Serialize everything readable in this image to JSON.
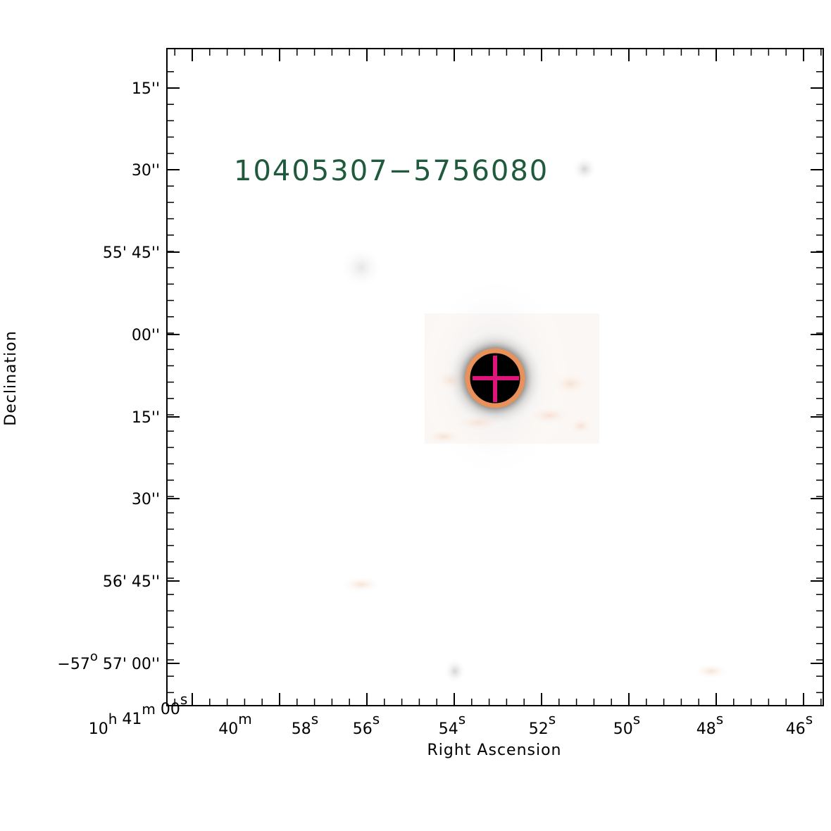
{
  "chart_data": {
    "type": "sky-image",
    "target_label": "10405307−5756080",
    "xlabel": "Right Ascension",
    "ylabel": "Declination",
    "colors": {
      "label": "#1f5a3c",
      "circle": "#e8915a",
      "cross": "#e0157c",
      "axis": "#000000"
    },
    "ra_ticks": [
      {
        "main": "10",
        "sup": "h",
        "main2": " 41",
        "sup2": "m",
        "main3": " 00",
        "sup3": "s"
      },
      {
        "main": "40",
        "sup": "m",
        "main2": "",
        "sup2": "",
        "main3": "",
        "sup3": ""
      },
      {
        "main": "58",
        "sup": "s"
      },
      {
        "main": "56",
        "sup": "s"
      },
      {
        "main": "54",
        "sup": "s"
      },
      {
        "main": "52",
        "sup": "s"
      },
      {
        "main": "50",
        "sup": "s"
      },
      {
        "main": "48",
        "sup": "s"
      },
      {
        "main": "46",
        "sup": "s"
      }
    ],
    "dec_ticks": [
      {
        "text": "15''"
      },
      {
        "text": "30''"
      },
      {
        "text": "55' 45''"
      },
      {
        "text": "00''"
      },
      {
        "text": "15''"
      },
      {
        "text": "30''"
      },
      {
        "text": "56' 45''"
      },
      {
        "text": "−57",
        "sup": "o",
        "rest": " 57' 00''"
      }
    ]
  }
}
